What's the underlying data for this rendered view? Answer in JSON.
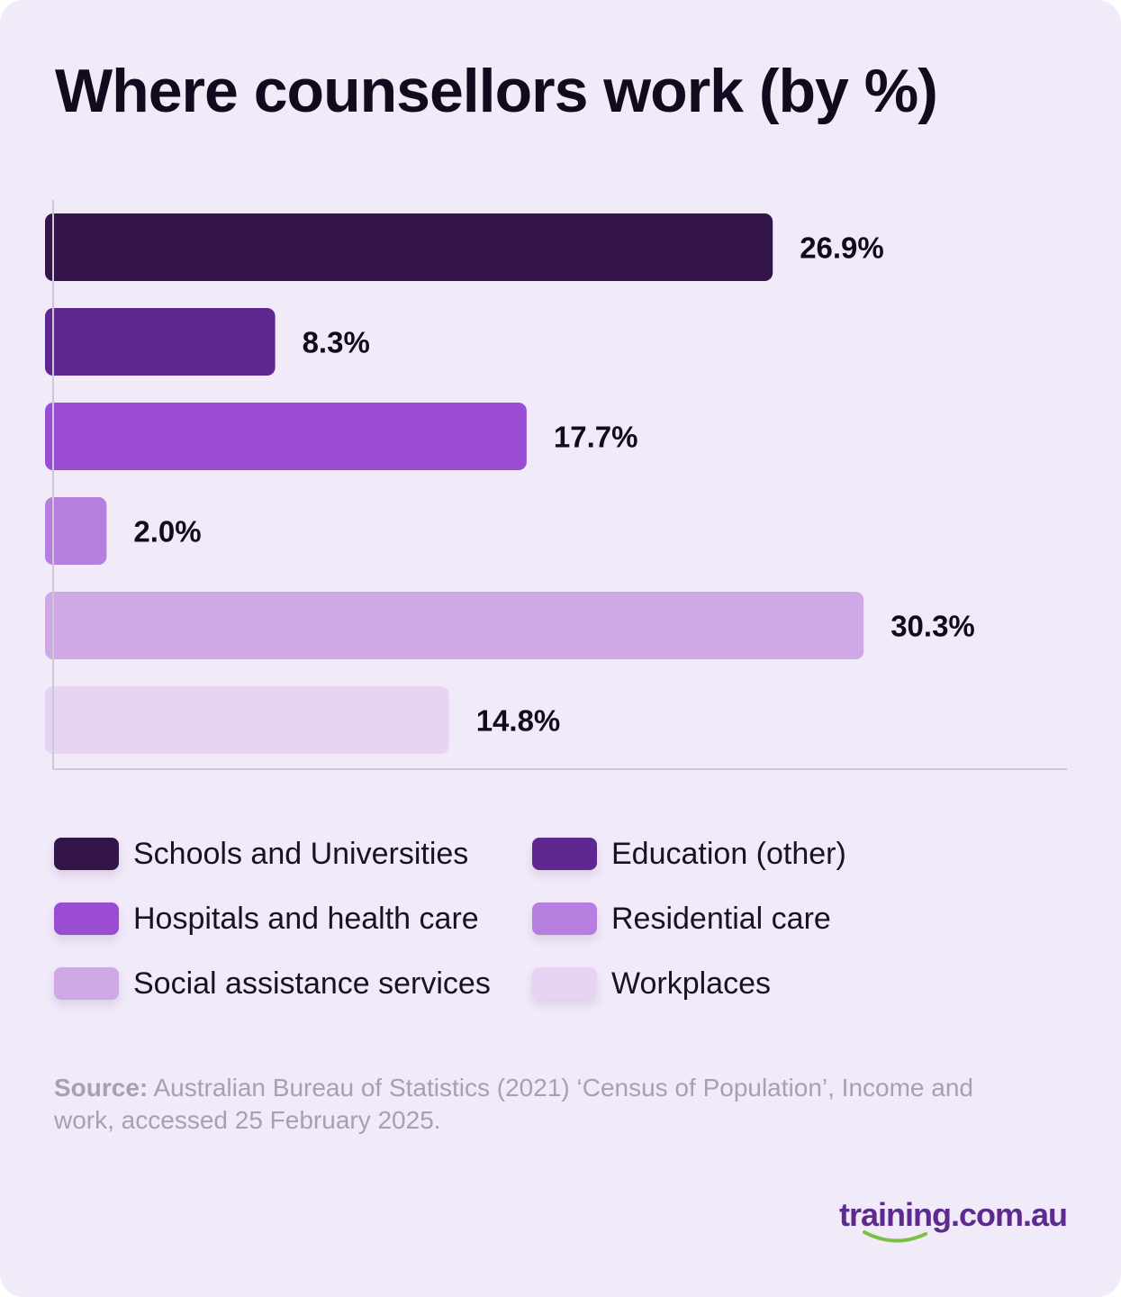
{
  "title": "Where counsellors work (by %)",
  "chart_data": {
    "type": "bar",
    "orientation": "horizontal",
    "title": "Where counsellors work (by %)",
    "categories": [
      "Schools and Universities",
      "Education (other)",
      "Hospitals and health care",
      "Residential care",
      "Social assistance services",
      "Workplaces"
    ],
    "values": [
      26.9,
      8.3,
      17.7,
      2.0,
      30.3,
      14.8
    ],
    "value_labels": [
      "26.9%",
      "8.3%",
      "17.7%",
      "2.0%",
      "30.3%",
      "14.8%"
    ],
    "colors": [
      "#34154a",
      "#5f2790",
      "#9a4cd2",
      "#b57edf",
      "#cfa8e6",
      "#e6d4f2"
    ],
    "xlim": [
      0,
      37.9
    ],
    "xlabel": "",
    "ylabel": "",
    "grid": false,
    "legend": "below"
  },
  "legend": {
    "items": [
      {
        "label": "Schools and Universities",
        "color": "#34154a"
      },
      {
        "label": "Education (other)",
        "color": "#5f2790"
      },
      {
        "label": "Hospitals and health care",
        "color": "#9a4cd2"
      },
      {
        "label": "Residential care",
        "color": "#b57edf"
      },
      {
        "label": "Social assistance services",
        "color": "#cfa8e6"
      },
      {
        "label": "Workplaces",
        "color": "#e6d4f2"
      }
    ]
  },
  "source": {
    "lead": "Source:",
    "text": " Australian Bureau of Statistics (2021) ‘Census of Population’, Income and work, accessed 25 February 2025."
  },
  "brand": {
    "name": "training.com.au",
    "accent_color": "#5c2a91",
    "smile_color": "#7bc043"
  }
}
